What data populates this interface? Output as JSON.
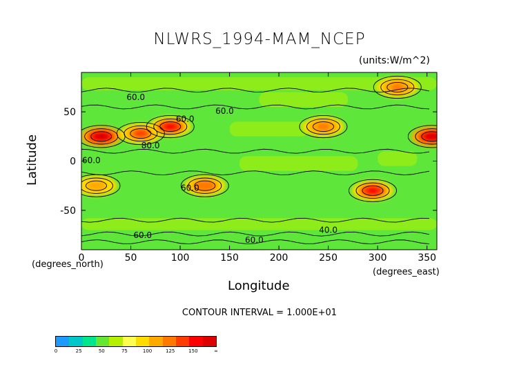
{
  "chart_data": {
    "type": "heatmap",
    "title": "NLWRS_1994-MAM_NCEP",
    "units": "(units:W/m^2)",
    "xlabel": "Longitude",
    "ylabel": "Latitude",
    "x_sublabel": "(degrees_east)",
    "y_sublabel": "(degrees_north)",
    "xlim": [
      0,
      360
    ],
    "ylim": [
      -90,
      90
    ],
    "x_ticks": [
      "0",
      "50",
      "100",
      "150",
      "200",
      "250",
      "300",
      "350"
    ],
    "x_tick_values": [
      0,
      50,
      100,
      150,
      200,
      250,
      300,
      350
    ],
    "y_ticks": [
      "50",
      "0",
      "-50"
    ],
    "y_tick_values": [
      50,
      0,
      -50
    ],
    "contour_labels": [
      {
        "text": "60.0",
        "lon": 55,
        "lat": 62
      },
      {
        "text": "60.0",
        "lon": 145,
        "lat": 48
      },
      {
        "text": "80.0",
        "lon": 70,
        "lat": 13
      },
      {
        "text": "60.0",
        "lon": 105,
        "lat": 40
      },
      {
        "text": "60.0",
        "lon": 10,
        "lat": -2
      },
      {
        "text": "60.0",
        "lon": 110,
        "lat": -30
      },
      {
        "text": "40.0",
        "lon": 250,
        "lat": -73
      },
      {
        "text": "60.0",
        "lon": 62,
        "lat": -78
      },
      {
        "text": "60.0",
        "lon": 175,
        "lat": -83
      }
    ],
    "features": [
      {
        "lon": 20,
        "lat": 25,
        "value": 150
      },
      {
        "lon": 60,
        "lat": 28,
        "value": 120
      },
      {
        "lon": 90,
        "lat": 35,
        "value": 130
      },
      {
        "lon": 125,
        "lat": -25,
        "value": 110
      },
      {
        "lon": 245,
        "lat": 35,
        "value": 105
      },
      {
        "lon": 295,
        "lat": -30,
        "value": 130
      },
      {
        "lon": 355,
        "lat": 25,
        "value": 150
      },
      {
        "lon": 320,
        "lat": 75,
        "value": 100
      },
      {
        "lon": 15,
        "lat": -25,
        "value": 95
      }
    ],
    "legend": {
      "labels": [
        "0",
        "25",
        "50",
        "75",
        "100",
        "125",
        "150",
        "∞"
      ],
      "colors": [
        "#1e9bff",
        "#00c8c8",
        "#00e68c",
        "#64e632",
        "#b4f000",
        "#ffff50",
        "#ffdc00",
        "#ffaa00",
        "#ff7800",
        "#ff3c00",
        "#ff0000",
        "#dc0000"
      ]
    },
    "contour_interval_text": "CONTOUR INTERVAL = 1.000E+01"
  }
}
